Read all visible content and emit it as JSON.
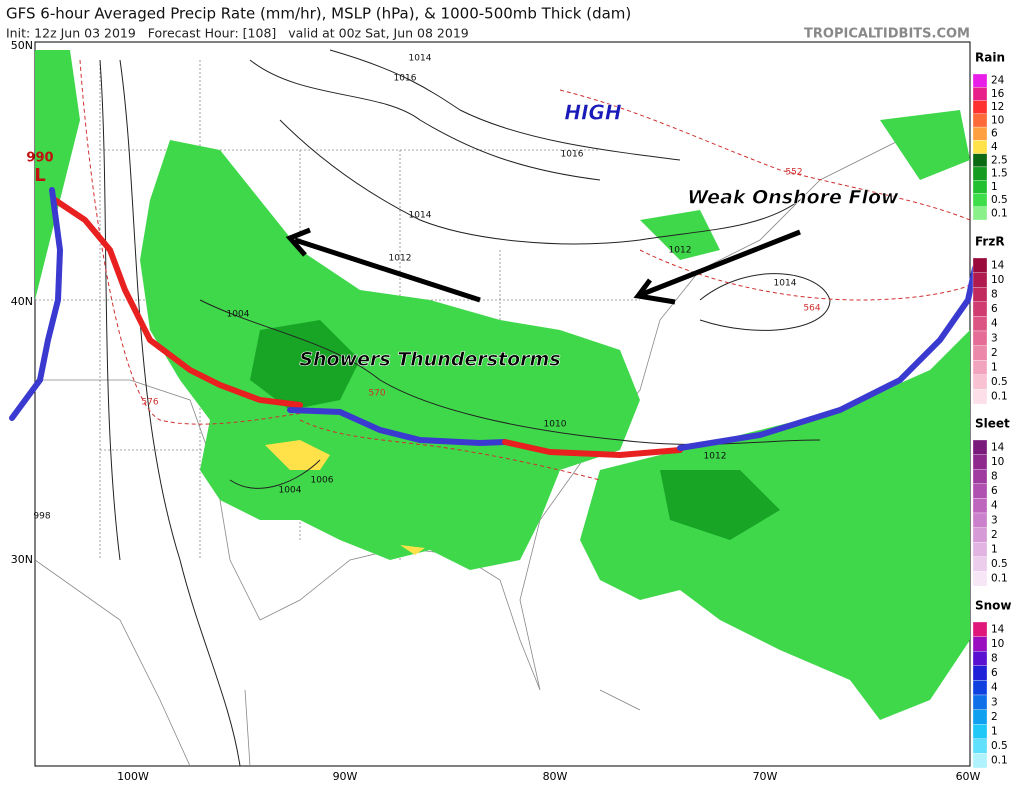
{
  "header": {
    "title": "GFS 6-hour Averaged Precip Rate (mm/hr), MSLP (hPa), & 1000-500mb Thick (dam)",
    "subtitle": "Init: 12z Jun 03 2019   Forecast Hour: [108]   valid at 00z Sat, Jun 08 2019",
    "source": "TROPICALTIDBITS.COM"
  },
  "map": {
    "lat_labels": [
      "50N",
      "40N",
      "30N"
    ],
    "lon_labels": [
      "100W",
      "90W",
      "80W",
      "70W",
      "60W"
    ],
    "annotations": {
      "high": "HIGH",
      "onshore": "Weak Onshore Flow",
      "storms": "Showers Thunderstorms",
      "low_pressure": "990",
      "low": "L"
    },
    "isobar_labels": [
      "1014",
      "1016",
      "1016",
      "1014",
      "1012",
      "1012",
      "1014",
      "1004",
      "1010",
      "1012",
      "998",
      "1004",
      "1006"
    ],
    "thickness_labels": [
      "552",
      "564",
      "576",
      "570"
    ]
  },
  "legends": [
    {
      "title": "Rain",
      "items": [
        {
          "label": "24",
          "color": "#e81ee8"
        },
        {
          "label": "16",
          "color": "#e8208a"
        },
        {
          "label": "12",
          "color": "#ff3030"
        },
        {
          "label": "10",
          "color": "#ff6a3a"
        },
        {
          "label": "6",
          "color": "#ffa040"
        },
        {
          "label": "4",
          "color": "#ffe24a"
        },
        {
          "label": "2.5",
          "color": "#0c6a14"
        },
        {
          "label": "1.5",
          "color": "#159c20"
        },
        {
          "label": "1",
          "color": "#20c030"
        },
        {
          "label": "0.5",
          "color": "#3ede4a"
        },
        {
          "label": "0.1",
          "color": "#8af08a"
        }
      ]
    },
    {
      "title": "FrzR",
      "items": [
        {
          "label": "14",
          "color": "#9a0a3a"
        },
        {
          "label": "10",
          "color": "#b01a4e"
        },
        {
          "label": "8",
          "color": "#c22a5e"
        },
        {
          "label": "6",
          "color": "#d03c70"
        },
        {
          "label": "4",
          "color": "#dc5484"
        },
        {
          "label": "3",
          "color": "#e46c96"
        },
        {
          "label": "2",
          "color": "#ec88aa"
        },
        {
          "label": "1",
          "color": "#f2a4be"
        },
        {
          "label": "0.5",
          "color": "#f8c2d2"
        },
        {
          "label": "0.1",
          "color": "#fcdfe8"
        }
      ]
    },
    {
      "title": "Sleet",
      "items": [
        {
          "label": "14",
          "color": "#7a1a7a"
        },
        {
          "label": "10",
          "color": "#8e2a8e"
        },
        {
          "label": "8",
          "color": "#a03ca0"
        },
        {
          "label": "6",
          "color": "#b050b0"
        },
        {
          "label": "4",
          "color": "#be66be"
        },
        {
          "label": "3",
          "color": "#ca80ca"
        },
        {
          "label": "2",
          "color": "#d69ad6"
        },
        {
          "label": "1",
          "color": "#e2b4e2"
        },
        {
          "label": "0.5",
          "color": "#eccdec"
        },
        {
          "label": "0.1",
          "color": "#f6e6f6"
        }
      ]
    },
    {
      "title": "Snow",
      "items": [
        {
          "label": "14",
          "color": "#e0187a"
        },
        {
          "label": "10",
          "color": "#9a10c0"
        },
        {
          "label": "8",
          "color": "#5a10d0"
        },
        {
          "label": "6",
          "color": "#2020d8"
        },
        {
          "label": "4",
          "color": "#1040e0"
        },
        {
          "label": "3",
          "color": "#1070e8"
        },
        {
          "label": "2",
          "color": "#10a0f0"
        },
        {
          "label": "1",
          "color": "#20c8f8"
        },
        {
          "label": "0.5",
          "color": "#60e0fc"
        },
        {
          "label": "0.1",
          "color": "#b0f2fe"
        }
      ]
    }
  ]
}
